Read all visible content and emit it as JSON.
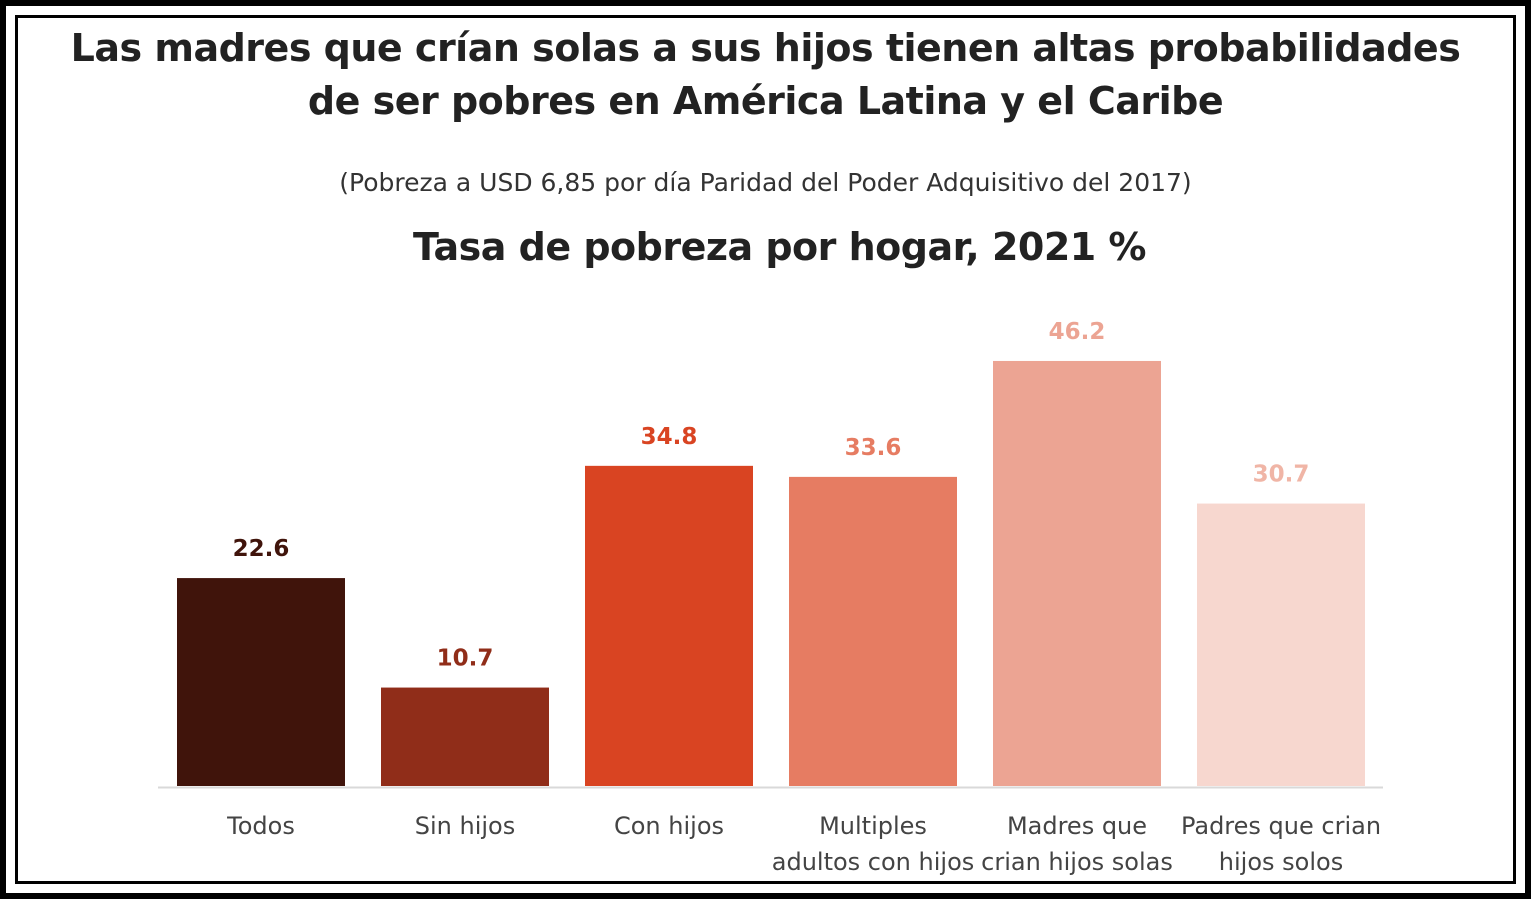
{
  "header": {
    "title_line1": "Las madres que crían solas a sus hijos tienen altas probabilidades",
    "title_line2": "de ser pobres en América Latina y el Caribe",
    "subtitle": "(Pobreza a USD 6,85 por día Paridad del Poder Adquisitivo del 2017)"
  },
  "chart_data": {
    "type": "bar",
    "title": "Tasa de pobreza por hogar, 2021 %",
    "categories": [
      [
        "Todos"
      ],
      [
        "Sin hijos"
      ],
      [
        "Con hijos"
      ],
      [
        "Multiples",
        "adultos con hijos"
      ],
      [
        "Madres que",
        "crian hijos solas"
      ],
      [
        "Padres que crian",
        "hijos solos"
      ]
    ],
    "values": [
      22.6,
      10.7,
      34.8,
      33.6,
      46.2,
      30.7
    ],
    "value_labels": [
      "22.6",
      "10.7",
      "34.8",
      "33.6",
      "46.2",
      "30.7"
    ],
    "colors": [
      "#40140b",
      "#902d19",
      "#d94422",
      "#e67c62",
      "#eca493",
      "#f7d7cf"
    ],
    "label_colors": [
      "#40140b",
      "#902d19",
      "#d94422",
      "#e67c62",
      "#eca493",
      "#f0b5a6"
    ],
    "ylim": [
      0,
      50
    ],
    "grid": false,
    "legend": "none",
    "xlabel": "",
    "ylabel": ""
  }
}
